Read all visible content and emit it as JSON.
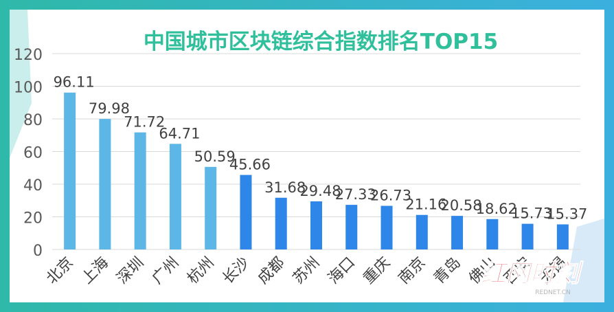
{
  "chart_data": {
    "type": "bar",
    "title": "中国城市区块链综合指数排名TOP15",
    "xlabel": "",
    "ylabel": "",
    "ylim": [
      0,
      120
    ],
    "yticks": [
      0,
      20,
      40,
      60,
      80,
      100,
      120
    ],
    "grid": true,
    "legend": "none",
    "categories": [
      "北京",
      "上海",
      "深圳",
      "广州",
      "杭州",
      "长沙",
      "成都",
      "苏州",
      "海口",
      "重庆",
      "南京",
      "青岛",
      "佛山",
      "西安",
      "无锡"
    ],
    "values": [
      96.11,
      79.98,
      71.72,
      64.71,
      50.59,
      45.66,
      31.68,
      29.48,
      27.33,
      26.73,
      21.16,
      20.58,
      18.62,
      15.73,
      15.37
    ],
    "labels": [
      "96.11",
      "79.98",
      "71.72",
      "64.71",
      "50.59",
      "45.66",
      "31.68",
      "29.48",
      "27.33",
      "26.73",
      "21.16",
      "20.58",
      "18.62",
      "15.73",
      "15.37"
    ],
    "colors": {
      "top5": "#5DB7E6",
      "rest": "#2E86E8",
      "title": "#2FBF9B",
      "frame_left": "#2FB9A9",
      "frame_right": "#3BB0DF"
    }
  },
  "watermark": {
    "text": "红网时刻",
    "subtext": "REDNET.CN"
  }
}
